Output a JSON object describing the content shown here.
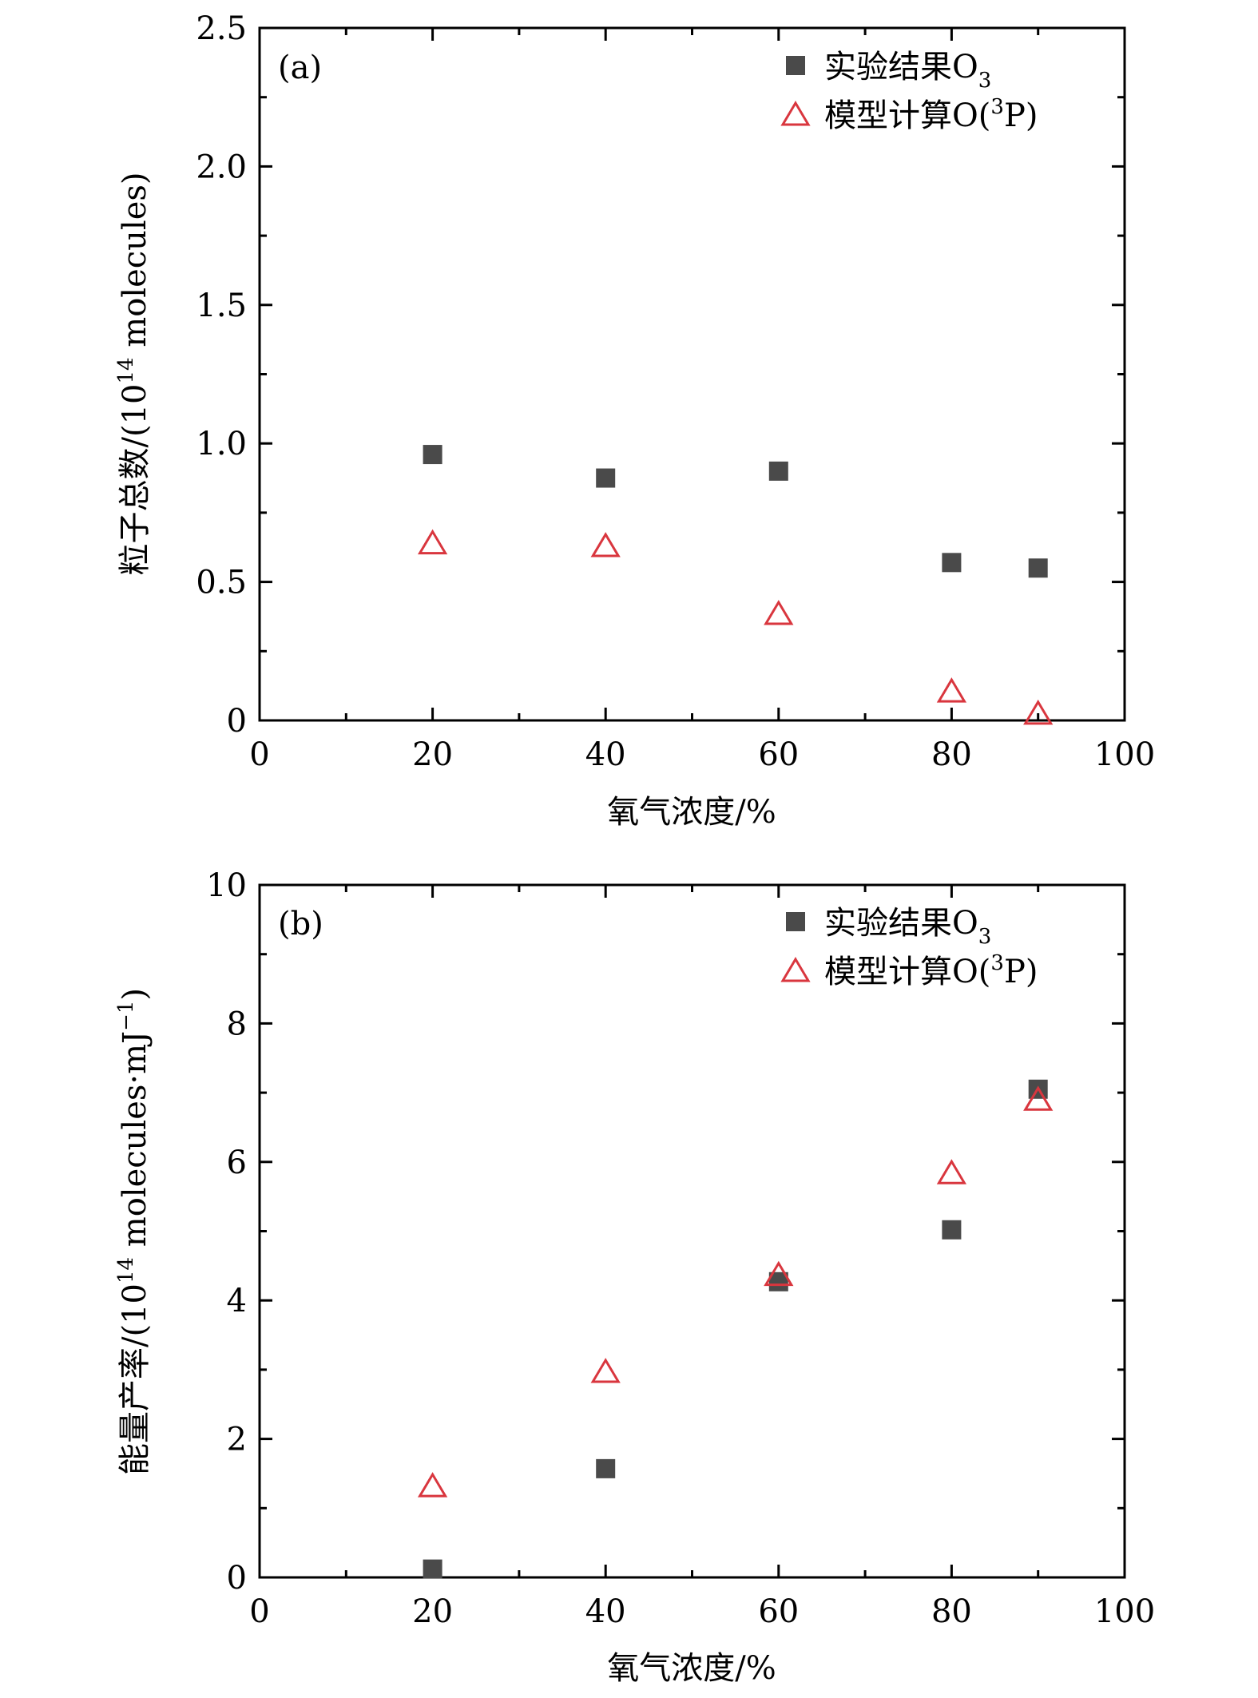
{
  "chart_data": [
    {
      "type": "scatter",
      "panel_label": "(a)",
      "xlabel": "氧气浓度/%",
      "ylabel_main": "粒子总数/(10",
      "ylabel_sup": "14",
      "ylabel_rest": " molecules)",
      "xlim": [
        0,
        100
      ],
      "ylim": [
        0,
        2.5
      ],
      "xticks": [
        0,
        20,
        40,
        60,
        80,
        100
      ],
      "xtick_labels": [
        "0",
        "20",
        "40",
        "60",
        "80",
        "100"
      ],
      "yticks": [
        0,
        0.5,
        1.0,
        1.5,
        2.0,
        2.5
      ],
      "ytick_labels": [
        "0",
        "0.5",
        "1.0",
        "1.5",
        "2.0",
        "2.5"
      ],
      "legend_position": "top-right",
      "series": [
        {
          "name_main": "实验结果O",
          "name_sub": "3",
          "marker": "square",
          "color": "#4a4a4a",
          "x": [
            20,
            40,
            60,
            80,
            90
          ],
          "y": [
            0.96,
            0.875,
            0.9,
            0.57,
            0.55
          ]
        },
        {
          "name_main": "模型计算O(",
          "name_sup": "3",
          "name_rest": "P)",
          "marker": "triangle-open",
          "color": "#d9363e",
          "x": [
            20,
            40,
            60,
            80,
            90
          ],
          "y": [
            0.635,
            0.625,
            0.38,
            0.1,
            0.02
          ]
        }
      ]
    },
    {
      "type": "scatter",
      "panel_label": "(b)",
      "xlabel": "氧气浓度/%",
      "ylabel_main": "能量产率/(10",
      "ylabel_sup": "14",
      "ylabel_rest": " molecules·mJ",
      "ylabel_sup2": "−1",
      "ylabel_end": ")",
      "xlim": [
        0,
        100
      ],
      "ylim": [
        0,
        10
      ],
      "xticks": [
        0,
        20,
        40,
        60,
        80,
        100
      ],
      "xtick_labels": [
        "0",
        "20",
        "40",
        "60",
        "80",
        "100"
      ],
      "yticks": [
        0,
        2,
        4,
        6,
        8,
        10
      ],
      "ytick_labels": [
        "0",
        "2",
        "4",
        "6",
        "8",
        "10"
      ],
      "legend_position": "top-right",
      "series": [
        {
          "name_main": "实验结果O",
          "name_sub": "3",
          "marker": "square",
          "color": "#4a4a4a",
          "x": [
            20,
            40,
            60,
            80,
            90
          ],
          "y": [
            0.12,
            1.57,
            4.27,
            5.02,
            7.05
          ]
        },
        {
          "name_main": "模型计算O(",
          "name_sup": "3",
          "name_rest": "P)",
          "marker": "triangle-open",
          "color": "#d9363e",
          "x": [
            20,
            40,
            60,
            80,
            90
          ],
          "y": [
            1.3,
            2.95,
            4.35,
            5.82,
            6.88
          ]
        }
      ]
    }
  ]
}
